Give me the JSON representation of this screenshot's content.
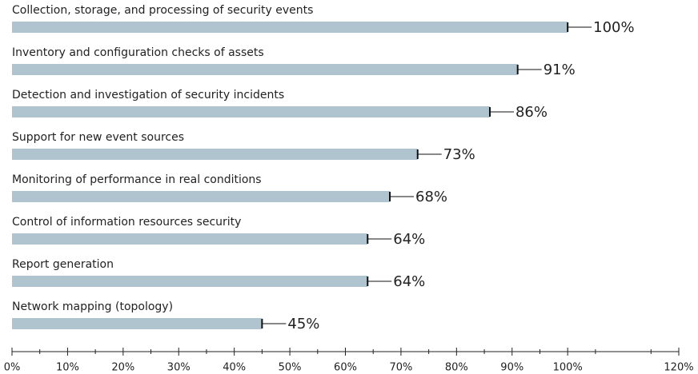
{
  "chart_data": {
    "type": "hbar",
    "categories": [
      "Collection, storage, and processing of security events",
      "Inventory and configuration checks of assets",
      "Detection and investigation of security incidents",
      "Support for new event sources",
      "Monitoring of performance in real conditions",
      "Control of information resources security",
      "Report generation",
      "Network mapping (topology)"
    ],
    "values": [
      100,
      91,
      86,
      73,
      68,
      64,
      64,
      45
    ],
    "value_labels": [
      "100%",
      "91%",
      "86%",
      "73%",
      "68%",
      "64%",
      "64%",
      "45%"
    ],
    "color": "#afc4cf",
    "xlim": [
      0,
      120
    ],
    "xticks": [
      {
        "value": 0,
        "label": "0%"
      },
      {
        "value": 10,
        "label": "10%"
      },
      {
        "value": 20,
        "label": "20%"
      },
      {
        "value": 30,
        "label": "30%"
      },
      {
        "value": 40,
        "label": "40%"
      },
      {
        "value": 50,
        "label": "50%"
      },
      {
        "value": 60,
        "label": "60%"
      },
      {
        "value": 70,
        "label": "70%"
      },
      {
        "value": 80,
        "label": "80%"
      },
      {
        "value": 90,
        "label": "90%"
      },
      {
        "value": 100,
        "label": "100%"
      },
      {
        "value": 120,
        "label": "120%"
      }
    ],
    "xminor_ticks": [
      5,
      15,
      25,
      35,
      45,
      55,
      65,
      75,
      85,
      95,
      105,
      115
    ]
  }
}
